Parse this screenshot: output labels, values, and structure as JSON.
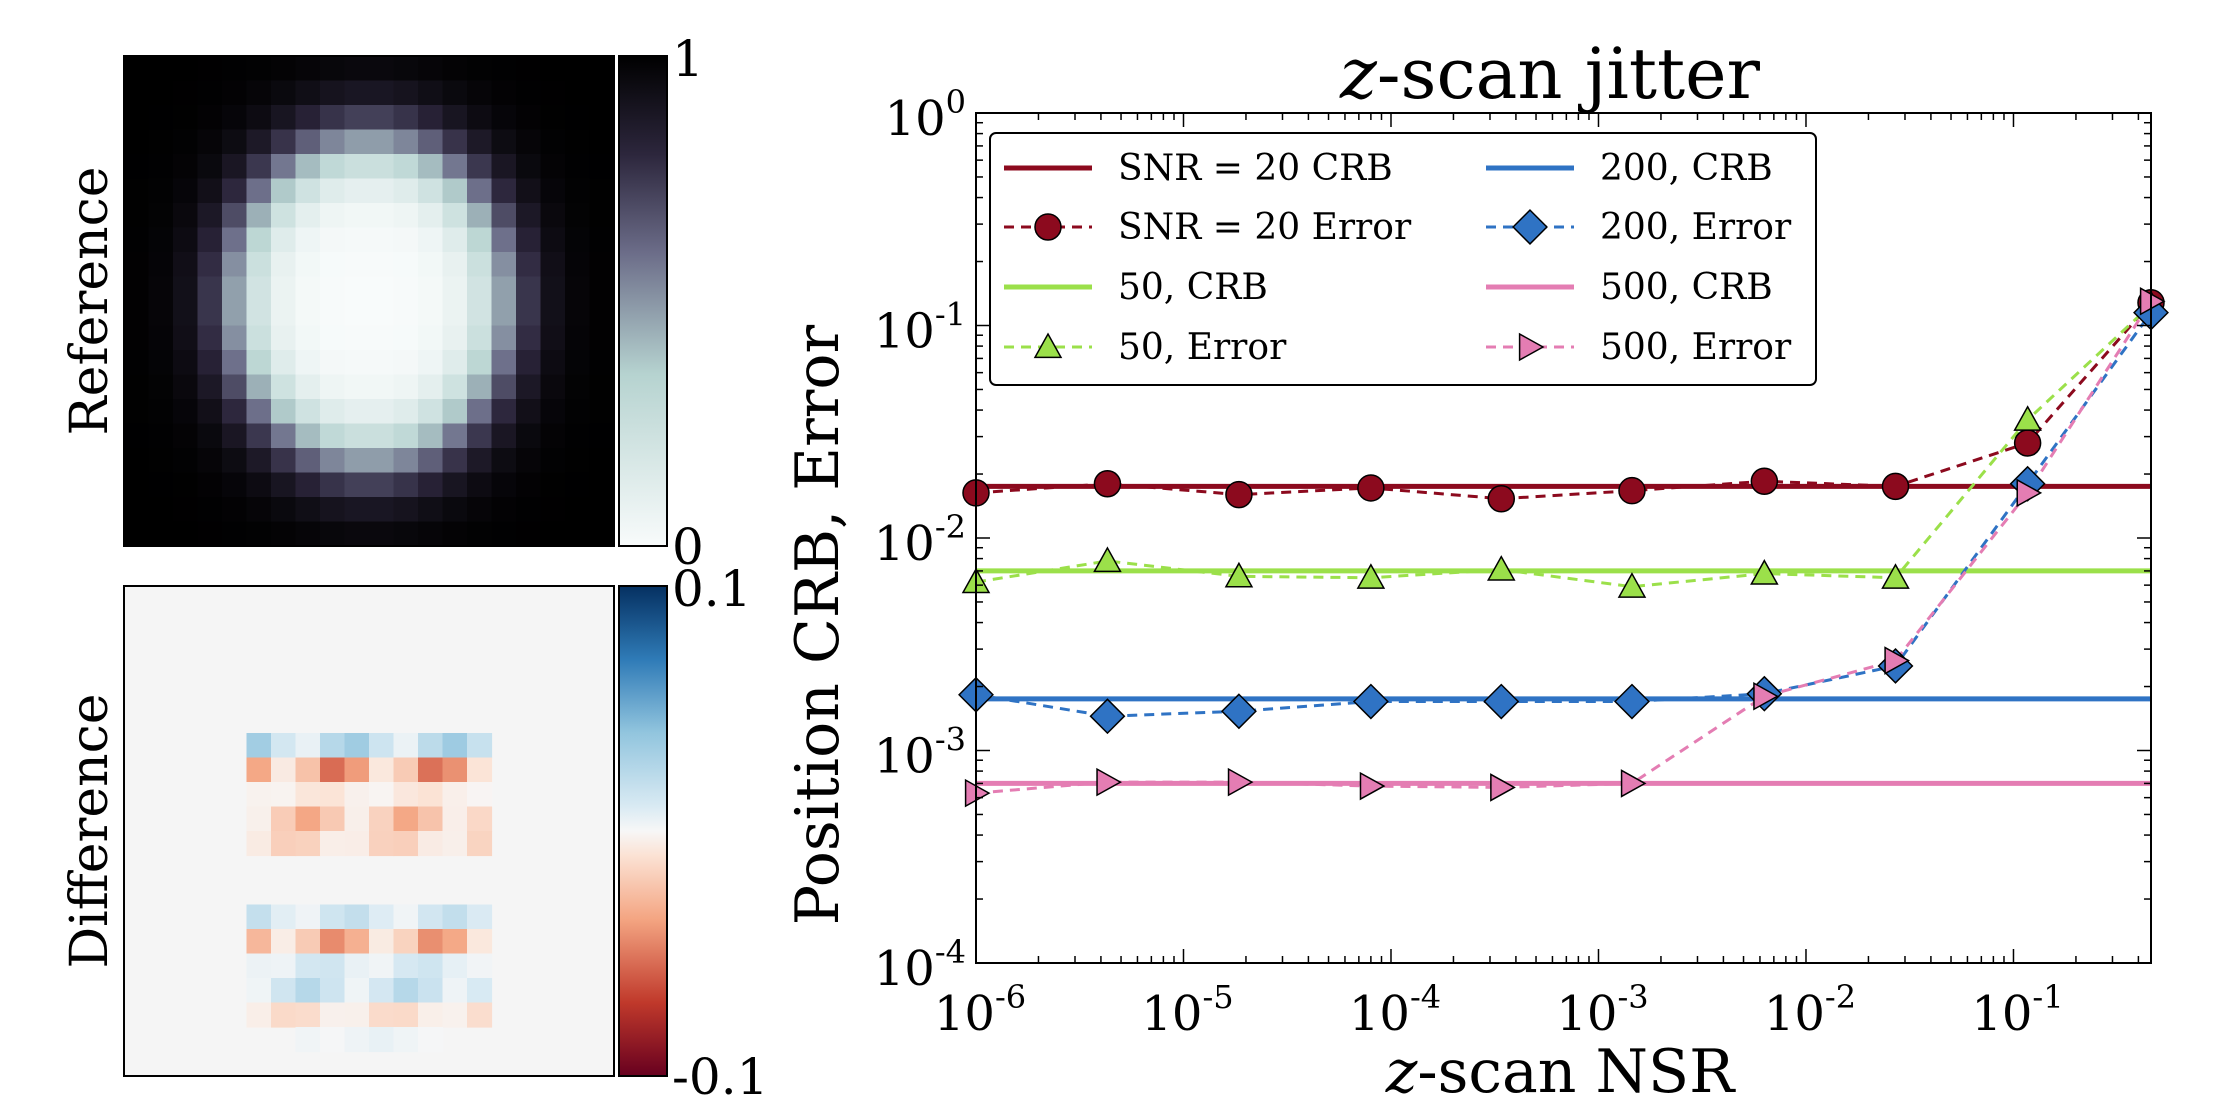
{
  "reference_panel": {
    "ylabel": "Reference",
    "colorbar": {
      "max_label": "1",
      "min_label": "0",
      "range": [
        0,
        1
      ]
    }
  },
  "difference_panel": {
    "ylabel": "Difference",
    "colorbar": {
      "max_label": "0.1",
      "min_label": "-0.1",
      "range": [
        -0.1,
        0.1
      ]
    }
  },
  "colors": {
    "crb20": "#8c0a1e",
    "crb50": "#9be04a",
    "crb200": "#2f73c4",
    "crb500": "#e47db3"
  },
  "chart_data": {
    "type": "line",
    "title_italic": "z",
    "title_rest": "-scan jitter",
    "xlabel_italic": "z",
    "xlabel_rest": "-scan NSR",
    "ylabel": "Position CRB, Error",
    "xscale": "log",
    "yscale": "log",
    "xlim": [
      1e-06,
      0.46
    ],
    "ylim": [
      0.0001,
      1
    ],
    "x_ticks": [
      {
        "value": 1e-06,
        "base": "10",
        "exp": "-6"
      },
      {
        "value": 1e-05,
        "base": "10",
        "exp": "-5"
      },
      {
        "value": 0.0001,
        "base": "10",
        "exp": "-4"
      },
      {
        "value": 0.001,
        "base": "10",
        "exp": "-3"
      },
      {
        "value": 0.01,
        "base": "10",
        "exp": "-2"
      },
      {
        "value": 0.1,
        "base": "10",
        "exp": "-1"
      }
    ],
    "y_ticks": [
      {
        "value": 1,
        "base": "10",
        "exp": "0"
      },
      {
        "value": 0.1,
        "base": "10",
        "exp": "-1"
      },
      {
        "value": 0.01,
        "base": "10",
        "exp": "-2"
      },
      {
        "value": 0.001,
        "base": "10",
        "exp": "-3"
      },
      {
        "value": 0.0001,
        "base": "10",
        "exp": "-4"
      }
    ],
    "x": [
      1e-06,
      4.3e-06,
      1.85e-05,
      8e-05,
      0.00034,
      0.00145,
      0.0063,
      0.027,
      0.117,
      0.46
    ],
    "crb_lines": [
      {
        "name": "SNR = 20 CRB",
        "value": 0.0175,
        "color": "#8c0a1e"
      },
      {
        "name": "50, CRB",
        "value": 0.007,
        "color": "#9be04a"
      },
      {
        "name": "200, CRB",
        "value": 0.00175,
        "color": "#2f73c4"
      },
      {
        "name": "500, CRB",
        "value": 0.0007,
        "color": "#e47db3"
      }
    ],
    "series": [
      {
        "name": "SNR = 20 Error",
        "marker": "circle",
        "color": "#8c0a1e",
        "values": [
          0.0163,
          0.018,
          0.016,
          0.0172,
          0.0153,
          0.0167,
          0.0185,
          0.0175,
          0.028,
          0.128
        ]
      },
      {
        "name": "50, Error",
        "marker": "triangle-up",
        "color": "#9be04a",
        "values": [
          0.0062,
          0.0078,
          0.0066,
          0.0065,
          0.0071,
          0.0059,
          0.0068,
          0.0065,
          0.036,
          0.125
        ]
      },
      {
        "name": "200, Error",
        "marker": "diamond",
        "color": "#2f73c4",
        "values": [
          0.00183,
          0.00145,
          0.00153,
          0.0017,
          0.0017,
          0.0017,
          0.00185,
          0.0025,
          0.018,
          0.115
        ]
      },
      {
        "name": "500, Error",
        "marker": "triangle-right",
        "color": "#e47db3",
        "values": [
          0.00063,
          0.00071,
          0.00071,
          0.00068,
          0.00067,
          0.0007,
          0.0018,
          0.00265,
          0.0163,
          0.13
        ]
      }
    ],
    "legend": {
      "placement": "upper-left",
      "columns": 2,
      "entries": [
        {
          "label": "SNR = 20 CRB",
          "kind": "line",
          "color": "#8c0a1e"
        },
        {
          "label": "200, CRB",
          "kind": "line",
          "color": "#2f73c4"
        },
        {
          "label": "SNR = 20 Error",
          "kind": "dashed",
          "marker": "circle",
          "color": "#8c0a1e"
        },
        {
          "label": "200, Error",
          "kind": "dashed",
          "marker": "diamond",
          "color": "#2f73c4"
        },
        {
          "label": "50, CRB",
          "kind": "line",
          "color": "#9be04a"
        },
        {
          "label": "500, CRB",
          "kind": "line",
          "color": "#e47db3"
        },
        {
          "label": "50, Error",
          "kind": "dashed",
          "marker": "triangle-up",
          "color": "#9be04a"
        },
        {
          "label": "500, Error",
          "kind": "dashed",
          "marker": "triangle-right",
          "color": "#e47db3"
        }
      ]
    }
  }
}
